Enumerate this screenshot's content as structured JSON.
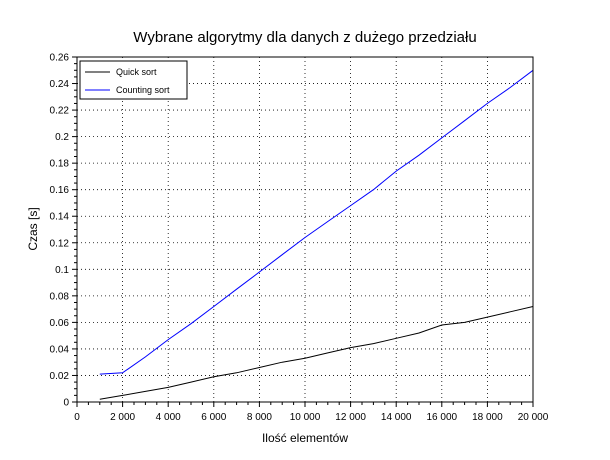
{
  "chart_data": {
    "type": "line",
    "title": "Wybrane algorytmy dla danych z dużego przedziału",
    "xlabel": "Ilość elementów",
    "ylabel": "Czas [s]",
    "xlim": [
      0,
      20000
    ],
    "ylim": [
      0,
      0.26
    ],
    "x_ticks": [
      0,
      2000,
      4000,
      6000,
      8000,
      10000,
      12000,
      14000,
      16000,
      18000,
      20000
    ],
    "x_tick_labels": [
      "0",
      "2 000",
      "4 000",
      "6 000",
      "8 000",
      "10 000",
      "12 000",
      "14 000",
      "16 000",
      "18 000",
      "20 000"
    ],
    "y_ticks": [
      0,
      0.02,
      0.04,
      0.06,
      0.08,
      0.1,
      0.12,
      0.14,
      0.16,
      0.18,
      0.2,
      0.22,
      0.24,
      0.26
    ],
    "y_tick_labels": [
      "0",
      "0.02",
      "0.04",
      "0.06",
      "0.08",
      "0.1",
      "0.12",
      "0.14",
      "0.16",
      "0.18",
      "0.2",
      "0.22",
      "0.24",
      "0.26"
    ],
    "grid": true,
    "legend_position": "top-left",
    "x": [
      1000,
      2000,
      3000,
      4000,
      5000,
      6000,
      7000,
      8000,
      9000,
      10000,
      11000,
      12000,
      13000,
      14000,
      15000,
      16000,
      17000,
      18000,
      19000,
      20000
    ],
    "series": [
      {
        "name": "Quick sort",
        "color": "#000000",
        "values": [
          0.002,
          0.005,
          0.008,
          0.011,
          0.015,
          0.019,
          0.022,
          0.026,
          0.03,
          0.033,
          0.037,
          0.041,
          0.044,
          0.048,
          0.052,
          0.058,
          0.06,
          0.064,
          0.068,
          0.072
        ]
      },
      {
        "name": "Counting sort",
        "color": "#0000ff",
        "values": [
          0.021,
          0.022,
          0.034,
          0.047,
          0.059,
          0.072,
          0.085,
          0.098,
          0.111,
          0.124,
          0.136,
          0.148,
          0.16,
          0.174,
          0.186,
          0.199,
          0.212,
          0.225,
          0.237,
          0.25
        ]
      }
    ]
  }
}
